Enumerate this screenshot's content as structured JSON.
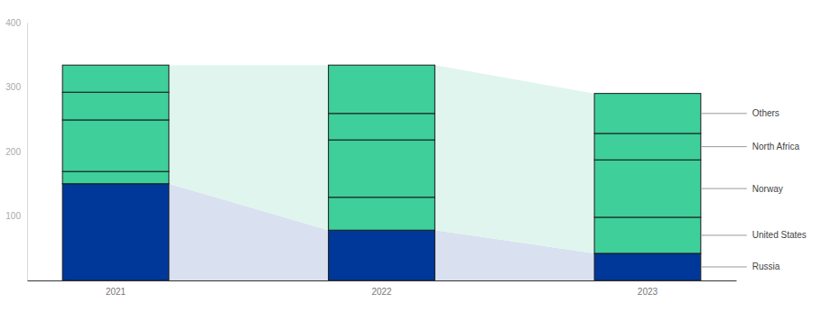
{
  "chart_data": {
    "type": "bar",
    "stacked": true,
    "legend": "right",
    "categories": [
      "2021",
      "2022",
      "2023"
    ],
    "series": [
      {
        "name": "Russia",
        "color": "#003899",
        "values": [
          150,
          78,
          42
        ]
      },
      {
        "name": "United States",
        "color": "#3ecf9b",
        "values": [
          19,
          51,
          56
        ]
      },
      {
        "name": "Norway",
        "color": "#3ecf9b",
        "values": [
          80,
          89,
          89
        ]
      },
      {
        "name": "North Africa",
        "color": "#3ecf9b",
        "values": [
          43,
          41,
          41
        ]
      },
      {
        "name": "Others",
        "color": "#3ecf9b",
        "values": [
          42,
          75,
          62
        ]
      }
    ],
    "ylim": [
      0,
      400
    ],
    "yticks": [
      100,
      200,
      300,
      400
    ]
  }
}
